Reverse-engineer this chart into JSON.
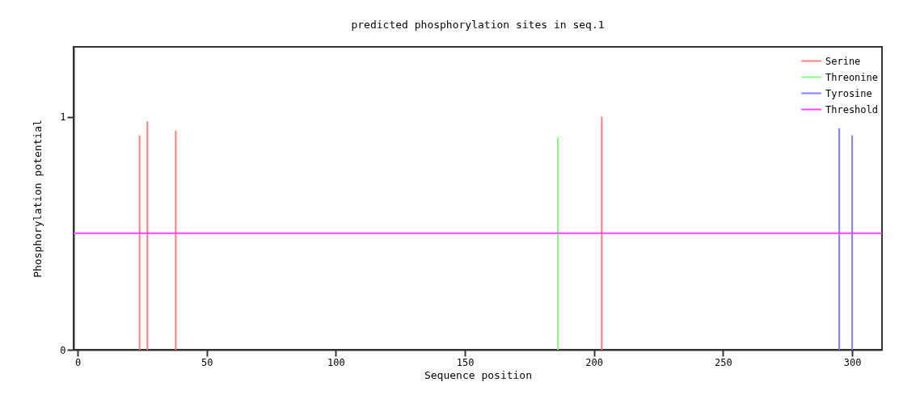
{
  "chart_data": {
    "type": "bar",
    "title": "predicted phosphorylation sites in seq.1",
    "xlabel": "Sequence position",
    "ylabel": "Phosphorylation potential",
    "xlim": [
      0,
      310
    ],
    "xticks": [
      0,
      50,
      100,
      150,
      200,
      250,
      300
    ],
    "ylim": [
      0,
      1.3
    ],
    "yticks": [
      0,
      1
    ],
    "series": [
      {
        "name": "Serine",
        "color": "#ff8080",
        "x": [
          24,
          27,
          38,
          203
        ],
        "values": [
          0.92,
          0.98,
          0.94,
          1.0
        ]
      },
      {
        "name": "Threonine",
        "color": "#80ff80",
        "x": [
          186
        ],
        "values": [
          0.91
        ]
      },
      {
        "name": "Tyrosine",
        "color": "#8080ff",
        "x": [
          295,
          300
        ],
        "values": [
          0.95,
          0.92
        ]
      }
    ],
    "ref_lines": [
      {
        "axis": "y",
        "value": 0.5,
        "label": "Threshold",
        "color": "#ff40ff"
      }
    ],
    "legend": "top right",
    "grid": false
  }
}
